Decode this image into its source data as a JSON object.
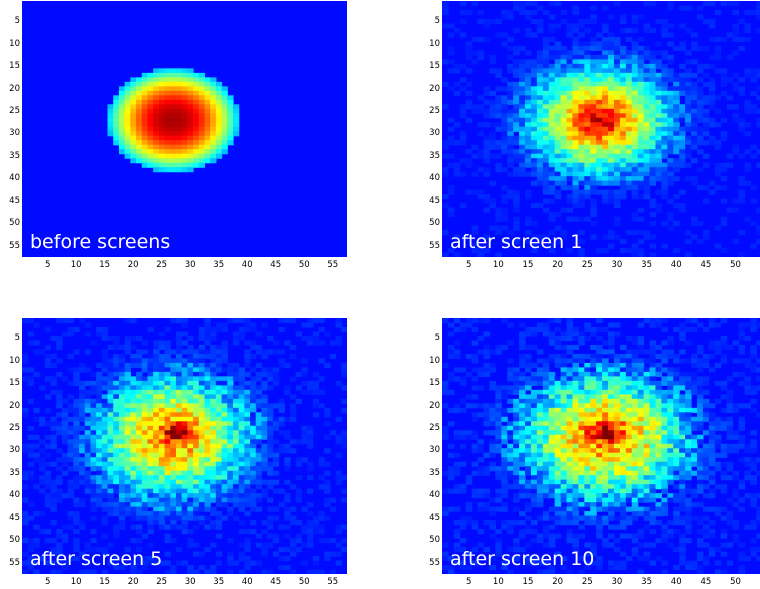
{
  "chart_data": [
    {
      "type": "heatmap",
      "label": "before screens",
      "grid_size": 57,
      "x_ticks": [
        5,
        10,
        15,
        20,
        25,
        30,
        35,
        40,
        45,
        50,
        55
      ],
      "y_ticks": [
        5,
        10,
        15,
        20,
        25,
        30,
        35,
        40,
        45,
        50,
        55
      ],
      "xlim": [
        1,
        57
      ],
      "ylim": [
        1,
        57
      ],
      "spot": {
        "center": [
          27,
          27
        ],
        "radius": 11.5,
        "sharp_edge": true,
        "noise": 0
      },
      "colormap": "jet"
    },
    {
      "type": "heatmap",
      "label": "after screen 1",
      "grid_size": 57,
      "x_ticks": [
        5,
        10,
        15,
        20,
        25,
        30,
        35,
        40,
        45,
        50,
        55
      ],
      "y_ticks": [
        5,
        10,
        15,
        20,
        25,
        30,
        35,
        40,
        45,
        50,
        55
      ],
      "xlim": [
        1,
        57
      ],
      "ylim": [
        1,
        57
      ],
      "spot": {
        "center": [
          27,
          27
        ],
        "radius": 11,
        "sharp_edge": false,
        "noise": 0.18
      },
      "colormap": "jet"
    },
    {
      "type": "heatmap",
      "label": "after screen 5",
      "grid_size": 57,
      "x_ticks": [
        5,
        10,
        15,
        20,
        25,
        30,
        35,
        40,
        45,
        50,
        55
      ],
      "y_ticks": [
        5,
        10,
        15,
        20,
        25,
        30,
        35,
        40,
        45,
        50,
        55
      ],
      "xlim": [
        1,
        57
      ],
      "ylim": [
        1,
        57
      ],
      "spot": {
        "center": [
          27,
          27
        ],
        "radius": 12,
        "sharp_edge": false,
        "noise": 0.22,
        "hotspot": [
          28,
          26
        ]
      },
      "colormap": "jet"
    },
    {
      "type": "heatmap",
      "label": "after screen 10",
      "grid_size": 57,
      "x_ticks": [
        5,
        10,
        15,
        20,
        25,
        30,
        35,
        40,
        45,
        50,
        55
      ],
      "y_ticks": [
        5,
        10,
        15,
        20,
        25,
        30,
        35,
        40,
        45,
        50,
        55
      ],
      "xlim": [
        1,
        57
      ],
      "ylim": [
        1,
        57
      ],
      "spot": {
        "center": [
          28,
          27
        ],
        "radius": 12.5,
        "sharp_edge": false,
        "noise": 0.25,
        "hotspot": [
          28,
          26
        ]
      },
      "colormap": "jet"
    }
  ]
}
